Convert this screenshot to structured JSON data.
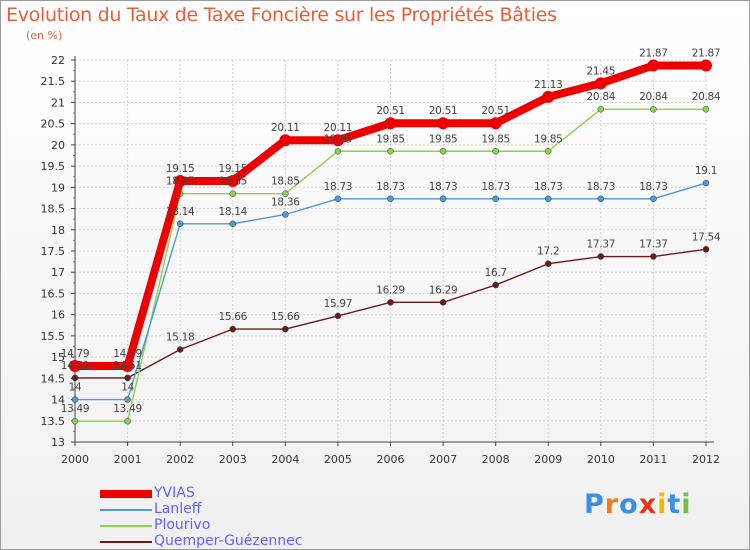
{
  "title": "Evolution du Taux de Taxe Foncière sur les Propriétés Bâties",
  "subtitle": "(en %)",
  "chart_data": {
    "type": "line",
    "title": "Evolution du Taux de Taxe Foncière sur les Propriétés Bâties",
    "ylabel": "(en %)",
    "xlabel": "",
    "ylim": [
      13,
      22
    ],
    "yticks": [
      "13",
      "13.5",
      "14",
      "14.5",
      "15",
      "15.5",
      "16",
      "16.5",
      "17",
      "17.5",
      "18",
      "18.5",
      "19",
      "19.5",
      "20",
      "20.5",
      "21",
      "21.5",
      "22"
    ],
    "categories": [
      "2000",
      "2001",
      "2002",
      "2003",
      "2004",
      "2005",
      "2006",
      "2007",
      "2008",
      "2009",
      "2010",
      "2011",
      "2012"
    ],
    "grid": true,
    "legend_position": "bottom-left",
    "series": [
      {
        "name": "Quemper-Guézennec",
        "color": "#6b1a1f",
        "values": [
          14.51,
          14.51,
          15.18,
          15.66,
          15.66,
          15.97,
          16.29,
          16.29,
          16.7,
          17.2,
          17.37,
          17.37,
          17.54
        ],
        "labels": [
          "14.51",
          "14.51",
          "15.18",
          "15.66",
          "15.66",
          "15.97",
          "16.29",
          "16.29",
          "16.7",
          "17.2",
          "17.37",
          "17.37",
          "17.54"
        ]
      },
      {
        "name": "Plourivo",
        "color": "#8ad24a",
        "values": [
          13.49,
          13.49,
          18.85,
          18.85,
          18.85,
          19.85,
          19.85,
          19.85,
          19.85,
          19.85,
          20.84,
          20.84,
          20.84
        ],
        "labels": [
          "13.49",
          "13.49",
          "18.85",
          "18.85",
          "18.85",
          "19.85",
          "19.85",
          "19.85",
          "19.85",
          "19.85",
          "20.84",
          "20.84",
          "20.84"
        ]
      },
      {
        "name": "Lanleff",
        "color": "#4f97d6",
        "values": [
          14,
          14,
          18.14,
          18.14,
          18.36,
          18.73,
          18.73,
          18.73,
          18.73,
          18.73,
          18.73,
          18.73,
          19.1
        ],
        "labels": [
          "14",
          "14",
          "18.14",
          "18.14",
          "18.36",
          "18.73",
          "18.73",
          "18.73",
          "18.73",
          "18.73",
          "18.73",
          "18.73",
          "19.1"
        ]
      },
      {
        "name": "YVIAS",
        "color": "#ee0000",
        "values": [
          14.79,
          14.79,
          19.15,
          19.15,
          20.11,
          20.11,
          20.51,
          20.51,
          20.51,
          21.13,
          21.45,
          21.87,
          21.87
        ],
        "labels": [
          "14.79",
          "14.79",
          "19.15",
          "19.15",
          "20.11",
          "20.11",
          "20.51",
          "20.51",
          "20.51",
          "21.13",
          "21.45",
          "21.87",
          "21.87"
        ]
      }
    ]
  },
  "legend": [
    {
      "label": "YVIAS",
      "color": "#ee0000"
    },
    {
      "label": "Lanleff",
      "color": "#4f97d6"
    },
    {
      "label": "Plourivo",
      "color": "#8ad24a"
    },
    {
      "label": "Quemper-Guézennec",
      "color": "#6b1a1f"
    }
  ],
  "logo": {
    "letters": [
      "P",
      "r",
      "o",
      "x",
      "i",
      "t",
      "i"
    ],
    "colors": [
      "#3d8fe0",
      "#f07b1b",
      "#3d8fe0",
      "#e8321e",
      "#f5b800",
      "#3d8fe0",
      "#6cc04a"
    ]
  }
}
